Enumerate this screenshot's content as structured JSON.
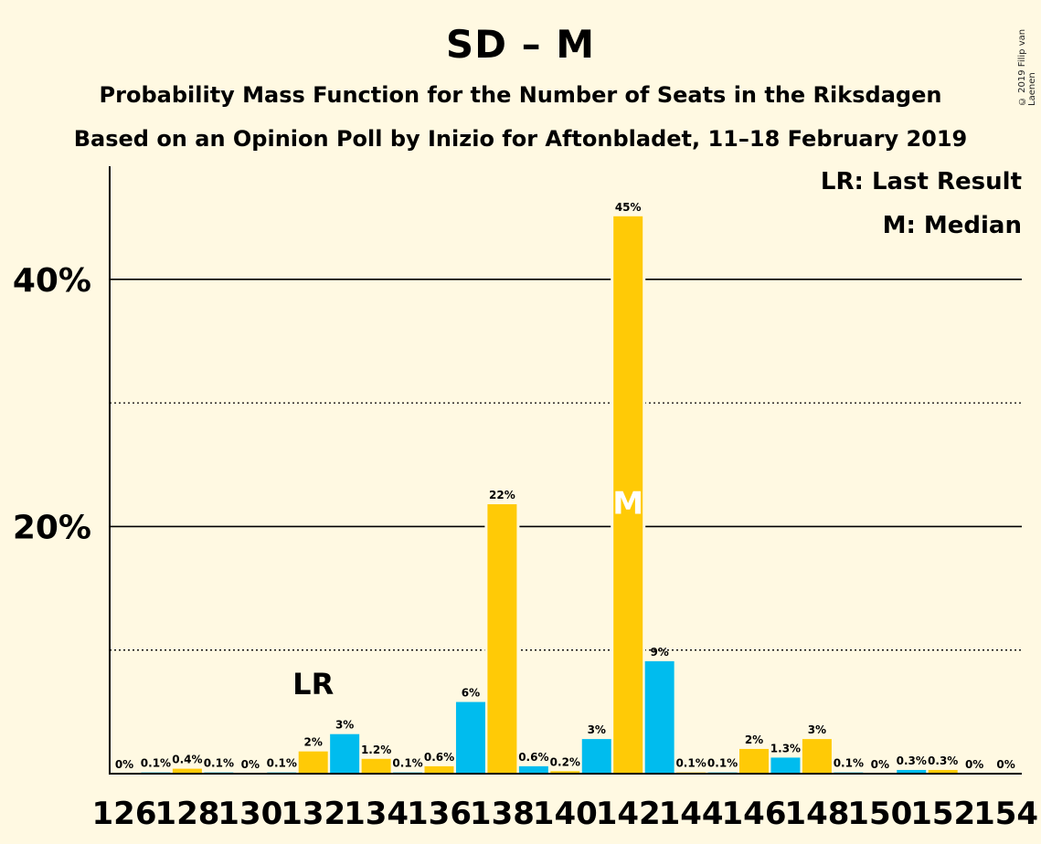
{
  "title": "SD – M",
  "subtitle1": "Probability Mass Function for the Number of Seats in the Riksdagen",
  "subtitle2": "Based on an Opinion Poll by Inizio for Aftonbladet, 11–18 February 2019",
  "copyright": "© 2019 Filip van Laenen",
  "legend": {
    "lr": "LR: Last Result",
    "m": "M: Median"
  },
  "colors": {
    "background": "#FFF9E2",
    "yellow": "#FFCA06",
    "blue": "#00BCEE"
  },
  "chart_data": {
    "type": "bar",
    "x": [
      126,
      127,
      128,
      129,
      130,
      131,
      132,
      133,
      134,
      135,
      136,
      137,
      138,
      139,
      140,
      141,
      142,
      143,
      144,
      145,
      146,
      147,
      148,
      149,
      150,
      151,
      152,
      153,
      154
    ],
    "values": [
      0,
      0.1,
      0.4,
      0.1,
      0,
      0.1,
      1.8,
      3.2,
      1.2,
      0.1,
      0.6,
      5.8,
      21.8,
      0.6,
      0.2,
      2.8,
      45.1,
      9.1,
      0.1,
      0.1,
      2.0,
      1.3,
      2.8,
      0.1,
      0,
      0.3,
      0.3,
      0,
      0
    ],
    "labels": [
      "0%",
      "0.1%",
      "0.4%",
      "0.1%",
      "0%",
      "0.1%",
      "2%",
      "3%",
      "1.2%",
      "0.1%",
      "0.6%",
      "6%",
      "22%",
      "0.6%",
      "0.2%",
      "3%",
      "45%",
      "9%",
      "0.1%",
      "0.1%",
      "2%",
      "1.3%",
      "3%",
      "0.1%",
      "0%",
      "0.3%",
      "0.3%",
      "0%",
      "0%"
    ],
    "bar_colors": [
      "yellow",
      "blue"
    ],
    "x_tick_labels": [
      "126",
      "128",
      "130",
      "132",
      "134",
      "136",
      "138",
      "140",
      "142",
      "144",
      "146",
      "148",
      "150",
      "152",
      "154"
    ],
    "y_tick_labels": [
      "20%",
      "40%"
    ],
    "ylim": [
      0,
      49
    ],
    "gridlines_solid": [
      20,
      40
    ],
    "gridlines_dotted": [
      10,
      30
    ],
    "last_result": {
      "x": 132,
      "label": "LR"
    },
    "median": {
      "x": 142,
      "label": "M"
    }
  }
}
